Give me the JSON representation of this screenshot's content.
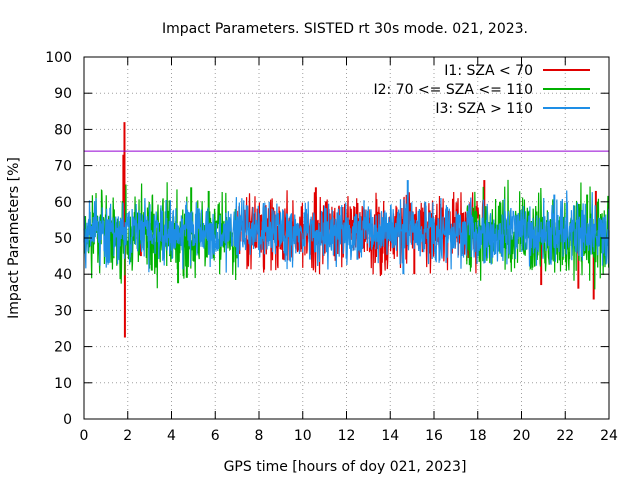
{
  "chart_data": {
    "type": "line",
    "title": "Impact Parameters. SISTED rt 30s mode. 021, 2023.",
    "xlabel": "GPS time [hours of doy 021, 2023]",
    "ylabel": "Impact Parameters [%]",
    "xlim": [
      0,
      24
    ],
    "ylim": [
      0,
      100
    ],
    "xticks": [
      "0",
      "2",
      "4",
      "6",
      "8",
      "10",
      "12",
      "14",
      "16",
      "18",
      "20",
      "22",
      "24"
    ],
    "yticks": [
      "0",
      "10",
      "20",
      "30",
      "40",
      "50",
      "60",
      "70",
      "80",
      "90",
      "100"
    ],
    "grid": true,
    "legend_position": "top-right",
    "threshold": {
      "value": 74,
      "color": "#9400d3"
    },
    "series": [
      {
        "name": "I1: SZA < 70",
        "color": "#e00000",
        "segments": [
          [
            7.0,
            18.3
          ]
        ],
        "center": 52,
        "spread": 5,
        "outliers": [
          {
            "x": 1.85,
            "y": 82
          },
          {
            "x": 1.87,
            "y": 22.5
          },
          {
            "x": 1.8,
            "y": 73
          },
          {
            "x": 18.3,
            "y": 66
          },
          {
            "x": 15.1,
            "y": 40
          },
          {
            "x": 10.6,
            "y": 64
          },
          {
            "x": 20.9,
            "y": 37
          },
          {
            "x": 23.3,
            "y": 33
          },
          {
            "x": 23.4,
            "y": 63
          },
          {
            "x": 22.6,
            "y": 36
          },
          {
            "x": 2.6,
            "y": 45
          }
        ]
      },
      {
        "name": "I2: 70 <= SZA <= 110",
        "color": "#00b000",
        "segments": [
          [
            0.0,
            7.0
          ],
          [
            17.5,
            24.0
          ]
        ],
        "center": 51,
        "spread": 5.5,
        "outliers": [
          {
            "x": 4.3,
            "y": 37.5
          },
          {
            "x": 4.9,
            "y": 64
          },
          {
            "x": 3.1,
            "y": 41
          },
          {
            "x": 5.7,
            "y": 63
          },
          {
            "x": 4.7,
            "y": 39
          },
          {
            "x": 23.0,
            "y": 62
          }
        ]
      },
      {
        "name": "I3: SZA > 110",
        "color": "#1e8ee6",
        "segments": [
          [
            0.0,
            24.0
          ]
        ],
        "center": 51.5,
        "spread": 4,
        "outliers": [
          {
            "x": 14.8,
            "y": 66
          },
          {
            "x": 14.6,
            "y": 40
          },
          {
            "x": 21.5,
            "y": 62
          },
          {
            "x": 12.5,
            "y": 44
          },
          {
            "x": 15.6,
            "y": 60
          }
        ]
      }
    ]
  }
}
